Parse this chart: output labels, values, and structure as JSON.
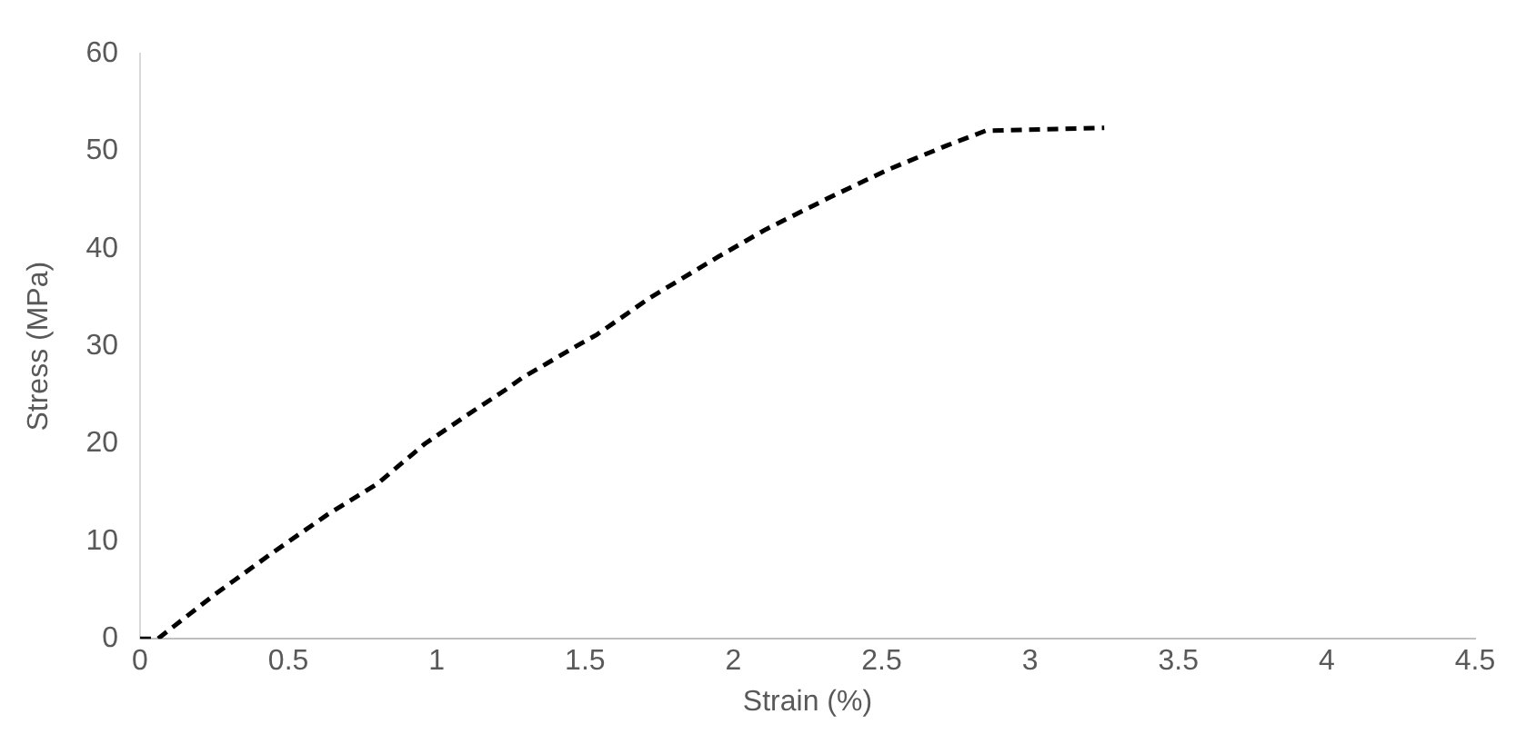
{
  "chart_data": {
    "type": "line",
    "xlabel": "Strain (%)",
    "ylabel": "Stress (MPa)",
    "x": [
      0,
      0.06,
      0.25,
      0.45,
      0.63,
      0.8,
      0.96,
      1.1,
      1.23,
      1.29,
      1.47,
      1.54,
      1.72,
      1.95,
      2.11,
      2.32,
      2.52,
      2.72,
      2.85,
      3.25
    ],
    "series": [
      {
        "color": "#000000",
        "line_style": "dashed",
        "values": [
          0,
          0,
          4.5,
          8.9,
          12.7,
          15.9,
          20,
          22.9,
          25.5,
          26.8,
          30,
          31.2,
          35,
          39.2,
          42,
          45.2,
          48.1,
          50.6,
          52.1,
          52.4
        ]
      }
    ],
    "xlim": [
      0,
      4.5
    ],
    "xticks": [
      0,
      0.5,
      1,
      1.5,
      2,
      2.5,
      3,
      3.5,
      4,
      4.5
    ],
    "ylim": [
      0,
      60
    ],
    "yticks": [
      0,
      10,
      20,
      30,
      40,
      50,
      60
    ],
    "grid": false,
    "legend": false,
    "marker": "none"
  }
}
